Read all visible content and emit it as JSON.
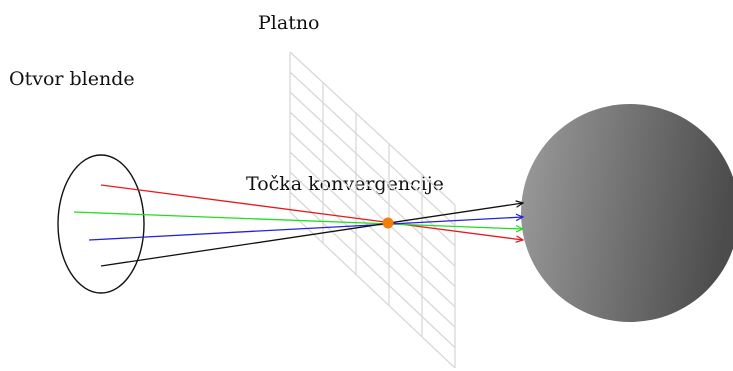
{
  "labels": {
    "screen": "Platno",
    "aperture": "Otvor blende",
    "convergence": "Točka konvergencije"
  },
  "colors": {
    "ray_red": "#e8191c",
    "ray_green": "#22dd22",
    "ray_blue": "#2323dd",
    "ray_black": "#111111",
    "convergence_point": "#f07f0d",
    "grid": "#d6d6d6",
    "sphere_light": "#9a9a9a",
    "sphere_dark": "#4a4a4a"
  },
  "icons": {
    "aperture": "ellipse-outline",
    "screen": "perspective-grid",
    "object": "shaded-sphere"
  }
}
